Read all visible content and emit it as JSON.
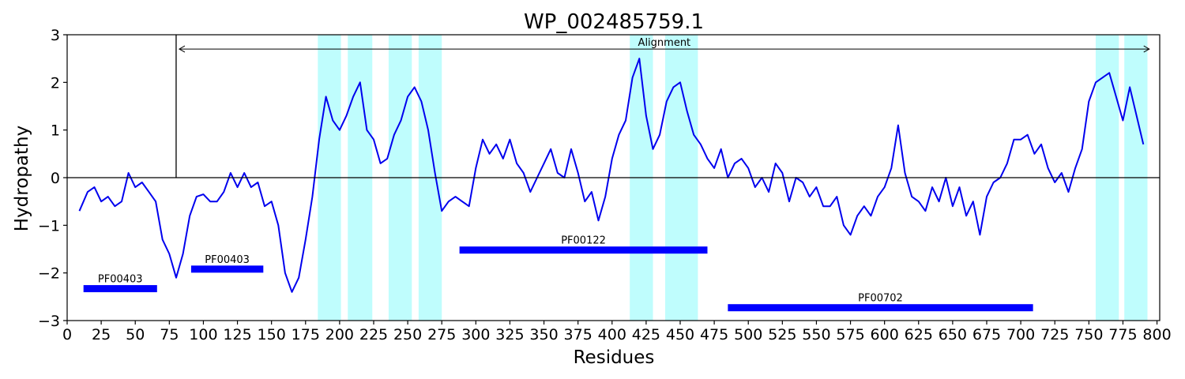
{
  "chart_data": {
    "type": "line",
    "title": "WP_002485759.1",
    "xlabel": "Residues",
    "ylabel": "Hydropathy",
    "xlim": [
      0,
      802
    ],
    "ylim": [
      -3,
      3
    ],
    "x_ticks": [
      0,
      25,
      50,
      75,
      100,
      125,
      150,
      175,
      200,
      225,
      250,
      275,
      300,
      325,
      350,
      375,
      400,
      425,
      450,
      475,
      500,
      525,
      550,
      575,
      600,
      625,
      650,
      675,
      700,
      725,
      750,
      775,
      800
    ],
    "y_ticks": [
      -3,
      -2,
      -1,
      0,
      1,
      2,
      3
    ],
    "grid": false,
    "colors": {
      "line": "#0000ee",
      "domain_bar": "#0000ff",
      "tm_region": "#7ffcfc",
      "axis": "#000000"
    },
    "zero_line": 0,
    "alignment": {
      "label": "Alignment",
      "start": 80,
      "end": 792,
      "y": 2.7,
      "divider_x": 80
    },
    "tm_regions": [
      [
        184,
        201
      ],
      [
        206,
        224
      ],
      [
        236,
        253
      ],
      [
        258,
        275
      ],
      [
        413,
        430
      ],
      [
        439,
        463
      ],
      [
        755,
        772
      ],
      [
        776,
        793
      ]
    ],
    "domains": [
      {
        "label": "PF00403",
        "start": 12,
        "end": 66,
        "y": -2.33
      },
      {
        "label": "PF00403",
        "start": 91,
        "end": 144,
        "y": -1.92
      },
      {
        "label": "PF00122",
        "start": 288,
        "end": 470,
        "y": -1.52
      },
      {
        "label": "PF00702",
        "start": 485,
        "end": 709,
        "y": -2.73
      }
    ],
    "series": [
      {
        "x": [
          9,
          15,
          20,
          25,
          30,
          35,
          40,
          45,
          50,
          55,
          60,
          65,
          70,
          75,
          80,
          85,
          90,
          95,
          100,
          105,
          110,
          115,
          120,
          125,
          130,
          135,
          140,
          145,
          150,
          155,
          160,
          165,
          170,
          175,
          180,
          185,
          190,
          195,
          200,
          205,
          210,
          215,
          220,
          225,
          230,
          235,
          240,
          245,
          250,
          255,
          260,
          265,
          270,
          275,
          280,
          285,
          290,
          295,
          300,
          305,
          310,
          315,
          320,
          325,
          330,
          335,
          340,
          345,
          350,
          355,
          360,
          365,
          370,
          375,
          380,
          385,
          390,
          395,
          400,
          405,
          410,
          415,
          420,
          425,
          430,
          435,
          440,
          445,
          450,
          455,
          460,
          465,
          470,
          475,
          480,
          485,
          490,
          495,
          500,
          505,
          510,
          515,
          520,
          525,
          530,
          535,
          540,
          545,
          550,
          555,
          560,
          565,
          570,
          575,
          580,
          585,
          590,
          595,
          600,
          605,
          610,
          615,
          620,
          625,
          630,
          635,
          640,
          645,
          650,
          655,
          660,
          665,
          670,
          675,
          680,
          685,
          690,
          695,
          700,
          705,
          710,
          715,
          720,
          725,
          730,
          735,
          740,
          745,
          750,
          755,
          760,
          765,
          770,
          775,
          780,
          785,
          790
        ],
        "y": [
          -0.7,
          -0.3,
          -0.2,
          -0.5,
          -0.4,
          -0.6,
          -0.5,
          0.1,
          -0.2,
          -0.1,
          -0.3,
          -0.5,
          -1.3,
          -1.6,
          -2.1,
          -1.6,
          -0.8,
          -0.4,
          -0.35,
          -0.5,
          -0.5,
          -0.3,
          0.1,
          -0.2,
          0.1,
          -0.2,
          -0.1,
          -0.6,
          -0.5,
          -1.0,
          -2.0,
          -2.4,
          -2.1,
          -1.3,
          -0.4,
          0.8,
          1.7,
          1.2,
          1.0,
          1.3,
          1.7,
          2.0,
          1.0,
          0.8,
          0.3,
          0.4,
          0.9,
          1.2,
          1.7,
          1.9,
          1.6,
          1.0,
          0.1,
          -0.7,
          -0.5,
          -0.4,
          -0.5,
          -0.6,
          0.2,
          0.8,
          0.5,
          0.7,
          0.4,
          0.8,
          0.3,
          0.1,
          -0.3,
          0.0,
          0.3,
          0.6,
          0.1,
          0.0,
          0.6,
          0.1,
          -0.5,
          -0.3,
          -0.9,
          -0.4,
          0.4,
          0.9,
          1.2,
          2.1,
          2.5,
          1.3,
          0.6,
          0.9,
          1.6,
          1.9,
          2.0,
          1.4,
          0.9,
          0.7,
          0.4,
          0.2,
          0.6,
          0.0,
          0.3,
          0.4,
          0.2,
          -0.2,
          0.0,
          -0.3,
          0.3,
          0.1,
          -0.5,
          0.0,
          -0.1,
          -0.4,
          -0.2,
          -0.6,
          -0.6,
          -0.4,
          -1.0,
          -1.2,
          -0.8,
          -0.6,
          -0.8,
          -0.4,
          -0.2,
          0.2,
          1.1,
          0.1,
          -0.4,
          -0.5,
          -0.7,
          -0.2,
          -0.5,
          0.0,
          -0.6,
          -0.2,
          -0.8,
          -0.5,
          -1.2,
          -0.4,
          -0.1,
          0.0,
          0.3,
          0.8,
          0.8,
          0.9,
          0.5,
          0.7,
          0.2,
          -0.1,
          0.1,
          -0.3,
          0.2,
          0.6,
          1.6,
          2.0,
          2.1,
          2.2,
          1.7,
          1.2,
          1.9,
          1.3,
          0.7
        ]
      }
    ]
  }
}
